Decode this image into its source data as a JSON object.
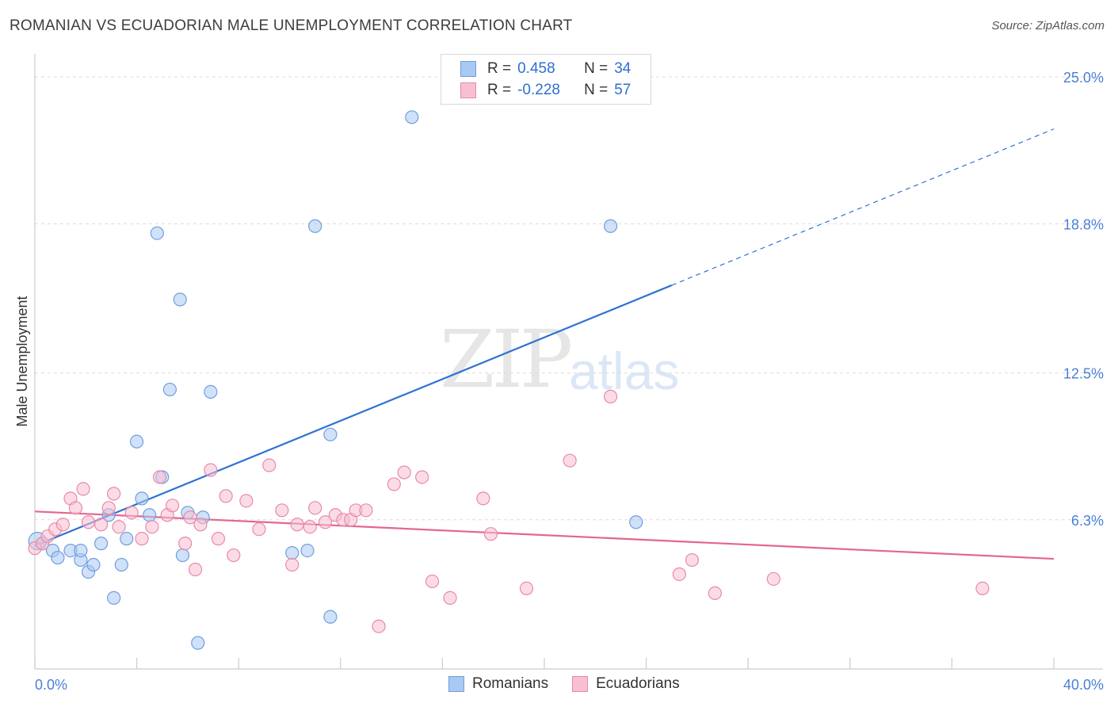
{
  "title": "ROMANIAN VS ECUADORIAN MALE UNEMPLOYMENT CORRELATION CHART",
  "source": "Source: ZipAtlas.com",
  "watermark": {
    "part1": "ZIP",
    "part2": "atlas"
  },
  "legend": {
    "rows": [
      {
        "r_label": "R =",
        "r_value": "0.458",
        "n_label": "N =",
        "n_value": "34",
        "color": "#a9c8f2",
        "border": "#6f9fe0"
      },
      {
        "r_label": "R =",
        "r_value": "-0.228",
        "n_label": "N =",
        "n_value": "57",
        "color": "#f7c0d1",
        "border": "#e88aa8"
      }
    ]
  },
  "bottom_legend": [
    {
      "label": "Romanians",
      "color": "#a9c8f2",
      "border": "#6f9fe0"
    },
    {
      "label": "Ecuadorians",
      "color": "#f7c0d1",
      "border": "#e88aa8"
    }
  ],
  "chart_data": {
    "type": "scatter",
    "title": "ROMANIAN VS ECUADORIAN MALE UNEMPLOYMENT CORRELATION CHART",
    "xlabel": "",
    "ylabel": "Male Unemployment",
    "xlim": [
      0,
      40
    ],
    "ylim": [
      0,
      25
    ],
    "x_tick_labels": [
      "0.0%",
      "40.0%"
    ],
    "y_ticks": [
      6.3,
      12.5,
      18.8,
      25.0
    ],
    "y_tick_labels": [
      "6.3%",
      "12.5%",
      "18.8%",
      "25.0%"
    ],
    "series": [
      {
        "name": "Romanians",
        "color": "#a9c8f2",
        "stroke": "#6f9fe0",
        "line_color": "#2f72d2",
        "trend": {
          "x0": 0.0,
          "y0": 5.2,
          "x1": 25.0,
          "y1": 16.2,
          "x_ext": 40.0,
          "y_ext": 22.8
        },
        "points": [
          [
            0.3,
            5.3
          ],
          [
            0.7,
            5.0
          ],
          [
            0.9,
            4.7
          ],
          [
            1.4,
            5.0
          ],
          [
            1.8,
            4.6
          ],
          [
            1.8,
            5.0
          ],
          [
            2.1,
            4.1
          ],
          [
            2.3,
            4.4
          ],
          [
            2.6,
            5.3
          ],
          [
            2.9,
            6.5
          ],
          [
            3.1,
            3.0
          ],
          [
            3.4,
            4.4
          ],
          [
            3.6,
            5.5
          ],
          [
            4.0,
            9.6
          ],
          [
            4.2,
            7.2
          ],
          [
            4.5,
            6.5
          ],
          [
            4.8,
            18.4
          ],
          [
            5.0,
            8.1
          ],
          [
            5.3,
            11.8
          ],
          [
            5.7,
            15.6
          ],
          [
            5.8,
            4.8
          ],
          [
            6.0,
            6.6
          ],
          [
            6.4,
            1.1
          ],
          [
            6.6,
            6.4
          ],
          [
            6.9,
            11.7
          ],
          [
            10.1,
            4.9
          ],
          [
            10.7,
            5.0
          ],
          [
            11.0,
            18.7
          ],
          [
            11.6,
            2.2
          ],
          [
            11.6,
            9.9
          ],
          [
            14.8,
            23.3
          ],
          [
            22.6,
            18.7
          ],
          [
            23.6,
            6.2
          ],
          [
            0.1,
            5.4
          ]
        ]
      },
      {
        "name": "Ecuadorians",
        "color": "#f7c0d1",
        "stroke": "#e88aa8",
        "line_color": "#e3668f",
        "trend": {
          "x0": 0.0,
          "y0": 6.65,
          "x1": 40.0,
          "y1": 4.65
        },
        "points": [
          [
            0.0,
            5.1
          ],
          [
            0.3,
            5.3
          ],
          [
            0.5,
            5.6
          ],
          [
            0.8,
            5.9
          ],
          [
            1.1,
            6.1
          ],
          [
            1.4,
            7.2
          ],
          [
            1.6,
            6.8
          ],
          [
            1.9,
            7.6
          ],
          [
            2.1,
            6.2
          ],
          [
            2.6,
            6.1
          ],
          [
            2.9,
            6.8
          ],
          [
            3.1,
            7.4
          ],
          [
            3.3,
            6.0
          ],
          [
            3.8,
            6.6
          ],
          [
            4.2,
            5.5
          ],
          [
            4.6,
            6.0
          ],
          [
            4.9,
            8.1
          ],
          [
            5.2,
            6.5
          ],
          [
            5.4,
            6.9
          ],
          [
            5.9,
            5.3
          ],
          [
            6.1,
            6.4
          ],
          [
            6.3,
            4.2
          ],
          [
            6.5,
            6.1
          ],
          [
            6.9,
            8.4
          ],
          [
            7.2,
            5.5
          ],
          [
            7.5,
            7.3
          ],
          [
            7.8,
            4.8
          ],
          [
            8.3,
            7.1
          ],
          [
            8.8,
            5.9
          ],
          [
            9.2,
            8.6
          ],
          [
            9.7,
            6.7
          ],
          [
            10.1,
            4.4
          ],
          [
            10.3,
            6.1
          ],
          [
            10.8,
            6.0
          ],
          [
            11.0,
            6.8
          ],
          [
            11.4,
            6.2
          ],
          [
            11.8,
            6.5
          ],
          [
            12.1,
            6.3
          ],
          [
            12.4,
            6.3
          ],
          [
            12.6,
            6.7
          ],
          [
            13.0,
            6.7
          ],
          [
            13.5,
            1.8
          ],
          [
            14.1,
            7.8
          ],
          [
            14.5,
            8.3
          ],
          [
            15.2,
            8.1
          ],
          [
            15.6,
            3.7
          ],
          [
            16.3,
            3.0
          ],
          [
            17.6,
            7.2
          ],
          [
            17.9,
            5.7
          ],
          [
            19.3,
            3.4
          ],
          [
            21.0,
            8.8
          ],
          [
            22.6,
            11.5
          ],
          [
            25.3,
            4.0
          ],
          [
            25.8,
            4.6
          ],
          [
            26.7,
            3.2
          ],
          [
            29.0,
            3.8
          ],
          [
            37.2,
            3.4
          ]
        ]
      }
    ]
  }
}
